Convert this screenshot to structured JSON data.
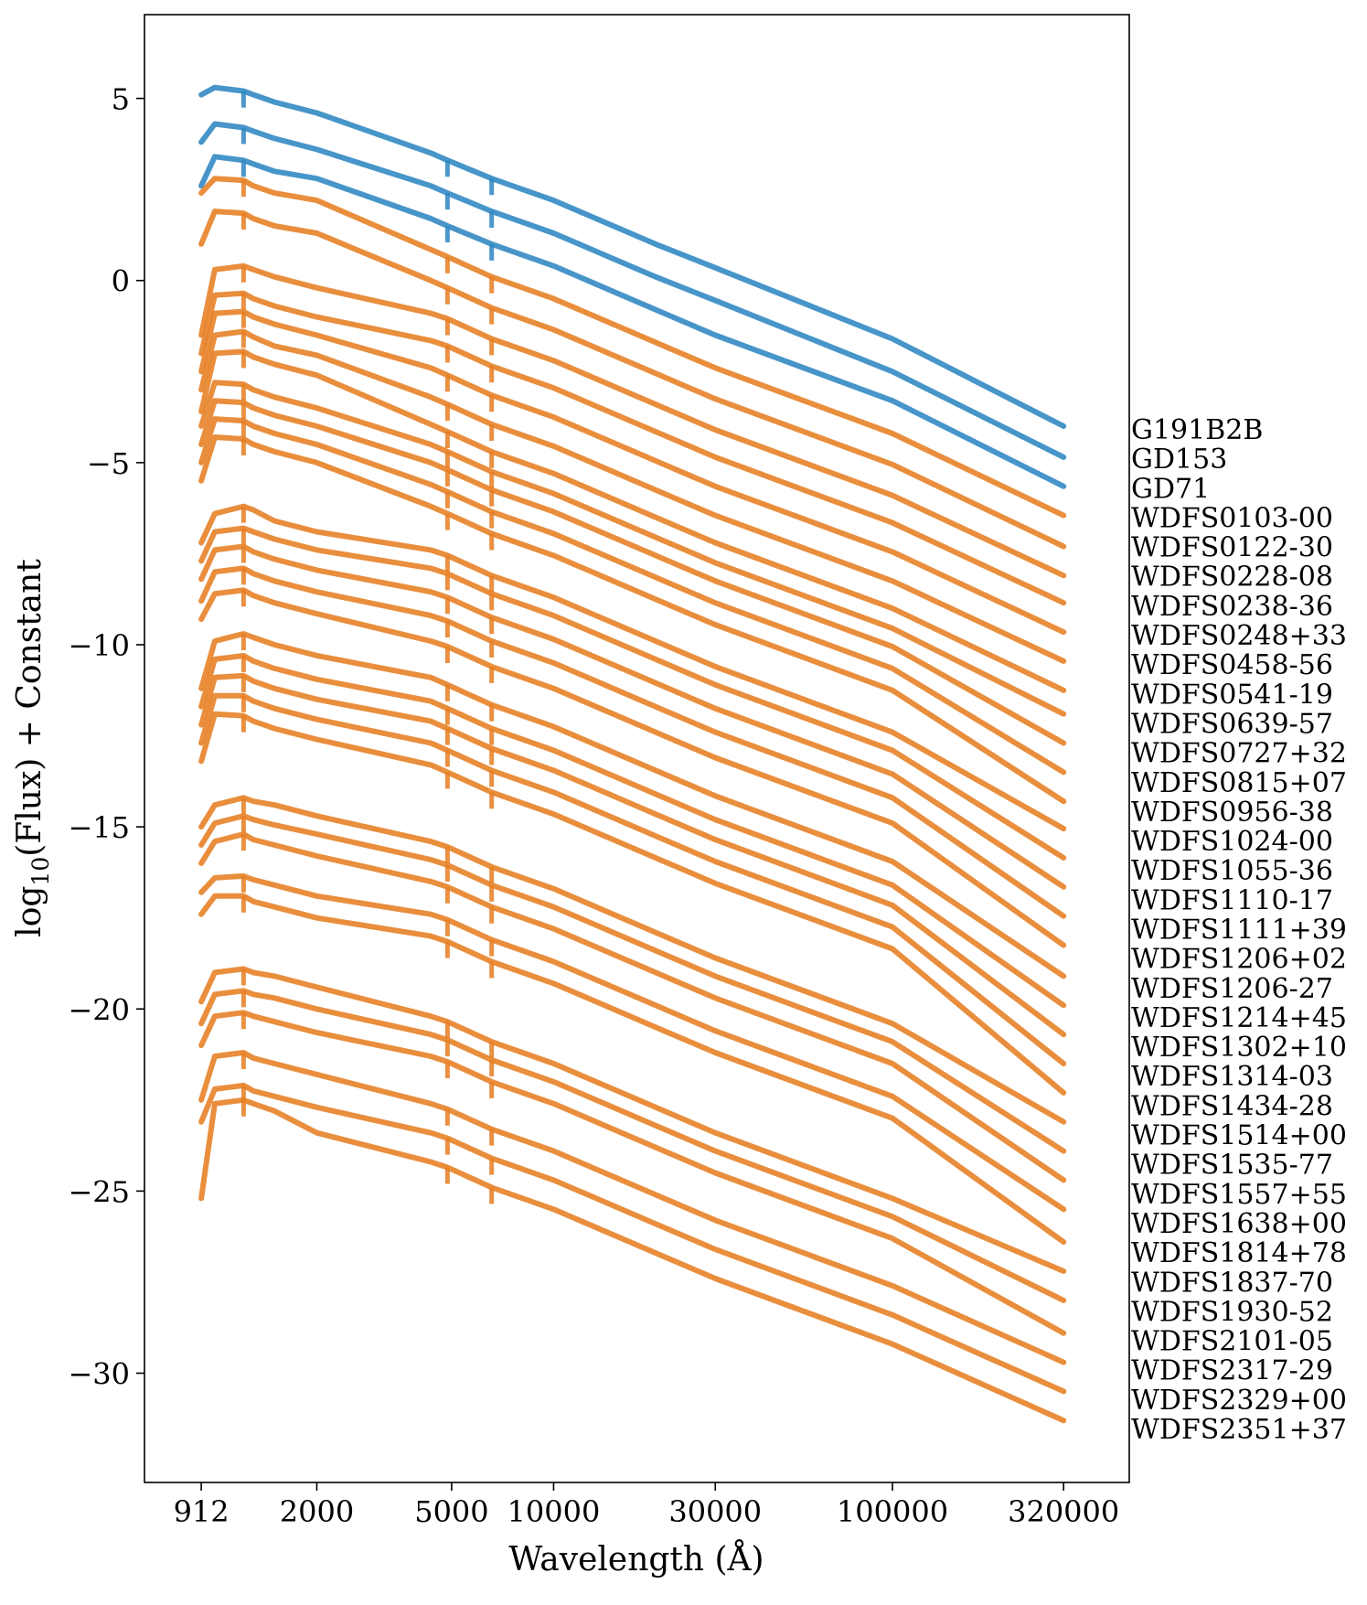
{
  "chart_data": {
    "type": "line",
    "title": "",
    "xlabel": "Wavelength (Å)",
    "ylabel": "log10(Flux) + Constant",
    "ylabel_parts": {
      "pre": "log",
      "sub": "10",
      "post": "(Flux) + Constant"
    },
    "xscale": "log",
    "xlim": [
      620,
      500000
    ],
    "ylim": [
      -33.0,
      7.3
    ],
    "xticks": [
      912,
      2000,
      5000,
      10000,
      30000,
      100000,
      320000
    ],
    "xtick_labels": [
      "912",
      "2000",
      "5000",
      "10000",
      "30000",
      "100000",
      "320000"
    ],
    "yticks": [
      5,
      0,
      -5,
      -10,
      -15,
      -20,
      -25,
      -30
    ],
    "ytick_labels": [
      "5",
      "0",
      "−5",
      "−10",
      "−15",
      "−20",
      "−25",
      "−30"
    ],
    "grid": false,
    "legend": "none (series labeled at right end of each line)",
    "colors": {
      "primary_standard": "#2e86c1",
      "secondary_standard": "#e67e22"
    },
    "x": [
      912,
      1000,
      1216,
      1300,
      1500,
      2000,
      4340,
      4861,
      6563,
      10000,
      20000,
      30000,
      100000,
      320000
    ],
    "series": [
      {
        "name": "G191B2B",
        "group": "primary",
        "values": [
          5.1,
          5.3,
          5.2,
          5.1,
          4.9,
          4.6,
          3.5,
          3.3,
          2.8,
          2.2,
          1.0,
          0.35,
          -1.6,
          -4.0
        ]
      },
      {
        "name": "GD153",
        "group": "primary",
        "values": [
          3.8,
          4.3,
          4.2,
          4.1,
          3.9,
          3.6,
          2.6,
          2.4,
          1.9,
          1.3,
          0.1,
          -0.55,
          -2.5,
          -4.85
        ]
      },
      {
        "name": "GD71",
        "group": "primary",
        "values": [
          2.6,
          3.4,
          3.3,
          3.2,
          3.0,
          2.8,
          1.7,
          1.5,
          1.0,
          0.4,
          -0.8,
          -1.5,
          -3.3,
          -5.65
        ]
      },
      {
        "name": "WDFS0103-00",
        "group": "secondary",
        "values": [
          2.4,
          2.8,
          2.75,
          2.6,
          2.4,
          2.2,
          0.85,
          0.65,
          0.1,
          -0.5,
          -1.7,
          -2.4,
          -4.2,
          -6.45
        ]
      },
      {
        "name": "WDFS0122-30",
        "group": "secondary",
        "values": [
          1.0,
          1.9,
          1.85,
          1.7,
          1.5,
          1.3,
          0.0,
          -0.2,
          -0.75,
          -1.35,
          -2.55,
          -3.25,
          -5.05,
          -7.3
        ]
      },
      {
        "name": "WDFS0228-08",
        "group": "secondary",
        "values": [
          -1.5,
          0.3,
          0.4,
          0.3,
          0.1,
          -0.2,
          -0.9,
          -1.05,
          -1.6,
          -2.2,
          -3.4,
          -4.1,
          -5.9,
          -8.1
        ]
      },
      {
        "name": "WDFS0238-36",
        "group": "secondary",
        "values": [
          -2.0,
          -0.4,
          -0.35,
          -0.5,
          -0.7,
          -1.0,
          -1.65,
          -1.8,
          -2.35,
          -2.95,
          -4.15,
          -4.85,
          -6.65,
          -8.85
        ]
      },
      {
        "name": "WDFS0248+33",
        "group": "secondary",
        "values": [
          -2.5,
          -0.9,
          -0.85,
          -1.0,
          -1.2,
          -1.5,
          -2.4,
          -2.6,
          -3.15,
          -3.75,
          -4.95,
          -5.65,
          -7.45,
          -9.65
        ]
      },
      {
        "name": "WDFS0458-56",
        "group": "secondary",
        "values": [
          -3.0,
          -1.5,
          -1.4,
          -1.55,
          -1.8,
          -2.05,
          -3.2,
          -3.4,
          -3.95,
          -4.55,
          -5.75,
          -6.45,
          -8.25,
          -10.45
        ]
      },
      {
        "name": "WDFS0541-19",
        "group": "secondary",
        "values": [
          -3.6,
          -2.0,
          -1.95,
          -2.1,
          -2.3,
          -2.6,
          -3.95,
          -4.15,
          -4.7,
          -5.3,
          -6.5,
          -7.2,
          -9.0,
          -11.25
        ]
      },
      {
        "name": "WDFS0639-57",
        "group": "secondary",
        "values": [
          -4.0,
          -2.8,
          -2.85,
          -3.0,
          -3.2,
          -3.5,
          -4.5,
          -4.7,
          -5.25,
          -5.85,
          -7.05,
          -7.75,
          -9.55,
          -11.9
        ]
      },
      {
        "name": "WDFS0727+32",
        "group": "secondary",
        "values": [
          -4.5,
          -3.3,
          -3.35,
          -3.5,
          -3.7,
          -4.0,
          -5.0,
          -5.2,
          -5.75,
          -6.35,
          -7.55,
          -8.25,
          -10.05,
          -12.7
        ]
      },
      {
        "name": "WDFS0815+07",
        "group": "secondary",
        "values": [
          -5.0,
          -3.8,
          -3.85,
          -4.0,
          -4.2,
          -4.5,
          -5.6,
          -5.8,
          -6.35,
          -6.95,
          -8.15,
          -8.85,
          -10.65,
          -13.5
        ]
      },
      {
        "name": "WDFS0956-38",
        "group": "secondary",
        "values": [
          -5.5,
          -4.3,
          -4.35,
          -4.5,
          -4.7,
          -5.0,
          -6.2,
          -6.4,
          -6.95,
          -7.55,
          -8.75,
          -9.45,
          -11.25,
          -14.3
        ]
      },
      {
        "name": "WDFS1024-00",
        "group": "secondary",
        "values": [
          -7.2,
          -6.4,
          -6.2,
          -6.3,
          -6.6,
          -6.9,
          -7.4,
          -7.55,
          -8.1,
          -8.7,
          -9.9,
          -10.6,
          -12.4,
          -15.05
        ]
      },
      {
        "name": "WDFS1055-36",
        "group": "secondary",
        "values": [
          -7.7,
          -6.9,
          -6.8,
          -6.9,
          -7.1,
          -7.4,
          -7.9,
          -8.05,
          -8.6,
          -9.2,
          -10.4,
          -11.1,
          -12.9,
          -15.85
        ]
      },
      {
        "name": "WDFS1110-17",
        "group": "secondary",
        "values": [
          -8.2,
          -7.4,
          -7.3,
          -7.45,
          -7.65,
          -7.95,
          -8.55,
          -8.7,
          -9.25,
          -9.85,
          -11.05,
          -11.75,
          -13.55,
          -16.65
        ]
      },
      {
        "name": "WDFS1111+39",
        "group": "secondary",
        "values": [
          -8.8,
          -8.0,
          -7.9,
          -8.05,
          -8.25,
          -8.55,
          -9.2,
          -9.35,
          -9.9,
          -10.5,
          -11.7,
          -12.4,
          -14.2,
          -17.45
        ]
      },
      {
        "name": "WDFS1206+02",
        "group": "secondary",
        "values": [
          -9.3,
          -8.6,
          -8.5,
          -8.65,
          -8.85,
          -9.15,
          -9.9,
          -10.05,
          -10.6,
          -11.2,
          -12.4,
          -13.1,
          -14.9,
          -18.25
        ]
      },
      {
        "name": "WDFS1206-27",
        "group": "secondary",
        "values": [
          -11.2,
          -9.9,
          -9.7,
          -9.8,
          -10.0,
          -10.3,
          -10.9,
          -11.1,
          -11.65,
          -12.25,
          -13.45,
          -14.15,
          -15.95,
          -19.1
        ]
      },
      {
        "name": "WDFS1214+45",
        "group": "secondary",
        "values": [
          -11.7,
          -10.4,
          -10.3,
          -10.45,
          -10.65,
          -10.95,
          -11.55,
          -11.75,
          -12.3,
          -12.9,
          -14.1,
          -14.8,
          -16.6,
          -19.9
        ]
      },
      {
        "name": "WDFS1302+10",
        "group": "secondary",
        "values": [
          -12.2,
          -10.9,
          -10.85,
          -11.0,
          -11.2,
          -11.5,
          -12.1,
          -12.3,
          -12.85,
          -13.45,
          -14.65,
          -15.35,
          -17.15,
          -20.7
        ]
      },
      {
        "name": "WDFS1314-03",
        "group": "secondary",
        "values": [
          -12.7,
          -11.4,
          -11.4,
          -11.55,
          -11.75,
          -12.05,
          -12.7,
          -12.9,
          -13.45,
          -14.05,
          -15.25,
          -15.95,
          -17.75,
          -21.5
        ]
      },
      {
        "name": "WDFS1434-28",
        "group": "secondary",
        "values": [
          -13.2,
          -11.9,
          -11.95,
          -12.1,
          -12.3,
          -12.6,
          -13.3,
          -13.5,
          -14.05,
          -14.65,
          -15.85,
          -16.55,
          -18.35,
          -22.3
        ]
      },
      {
        "name": "WDFS1514+00",
        "group": "secondary",
        "values": [
          -15.0,
          -14.4,
          -14.2,
          -14.3,
          -14.4,
          -14.7,
          -15.4,
          -15.55,
          -16.1,
          -16.7,
          -17.9,
          -18.6,
          -20.4,
          -23.1
        ]
      },
      {
        "name": "WDFS1535-77",
        "group": "secondary",
        "values": [
          -15.5,
          -14.9,
          -14.7,
          -14.8,
          -14.95,
          -15.2,
          -15.9,
          -16.05,
          -16.6,
          -17.2,
          -18.4,
          -19.1,
          -20.9,
          -23.9
        ]
      },
      {
        "name": "WDFS1557+55",
        "group": "secondary",
        "values": [
          -16.0,
          -15.4,
          -15.2,
          -15.35,
          -15.5,
          -15.8,
          -16.5,
          -16.65,
          -17.2,
          -17.8,
          -19.0,
          -19.7,
          -21.5,
          -24.7
        ]
      },
      {
        "name": "WDFS1638+00",
        "group": "secondary",
        "values": [
          -16.8,
          -16.4,
          -16.35,
          -16.45,
          -16.6,
          -16.9,
          -17.4,
          -17.55,
          -18.1,
          -18.7,
          -19.9,
          -20.6,
          -22.4,
          -25.5
        ]
      },
      {
        "name": "WDFS1814+78",
        "group": "secondary",
        "values": [
          -17.4,
          -16.9,
          -16.9,
          -17.05,
          -17.2,
          -17.5,
          -18.0,
          -18.15,
          -18.7,
          -19.3,
          -20.5,
          -21.2,
          -23.0,
          -26.4
        ]
      },
      {
        "name": "WDFS1837-70",
        "group": "secondary",
        "values": [
          -19.8,
          -19.0,
          -18.9,
          -19.0,
          -19.1,
          -19.4,
          -20.2,
          -20.35,
          -20.9,
          -21.5,
          -22.7,
          -23.4,
          -25.2,
          -27.2
        ]
      },
      {
        "name": "WDFS1930-52",
        "group": "secondary",
        "values": [
          -20.4,
          -19.6,
          -19.5,
          -19.6,
          -19.7,
          -20.0,
          -20.7,
          -20.85,
          -21.4,
          -22.0,
          -23.2,
          -23.9,
          -25.7,
          -28.0
        ]
      },
      {
        "name": "WDFS2101-05",
        "group": "secondary",
        "values": [
          -21.0,
          -20.2,
          -20.1,
          -20.2,
          -20.35,
          -20.65,
          -21.3,
          -21.45,
          -22.0,
          -22.6,
          -23.8,
          -24.5,
          -26.3,
          -28.9
        ]
      },
      {
        "name": "WDFS2317-29",
        "group": "secondary",
        "values": [
          -22.5,
          -21.3,
          -21.2,
          -21.35,
          -21.5,
          -21.8,
          -22.6,
          -22.75,
          -23.3,
          -23.9,
          -25.1,
          -25.8,
          -27.6,
          -29.7
        ]
      },
      {
        "name": "WDFS2329+00",
        "group": "secondary",
        "values": [
          -23.1,
          -22.2,
          -22.1,
          -22.25,
          -22.4,
          -22.7,
          -23.4,
          -23.55,
          -24.1,
          -24.7,
          -25.9,
          -26.6,
          -28.4,
          -30.5
        ]
      },
      {
        "name": "WDFS2351+37",
        "group": "secondary",
        "values": [
          -25.2,
          -22.6,
          -22.5,
          -22.6,
          -22.8,
          -23.4,
          -24.2,
          -24.35,
          -24.9,
          -25.5,
          -26.7,
          -27.4,
          -29.2,
          -31.3
        ]
      }
    ]
  }
}
